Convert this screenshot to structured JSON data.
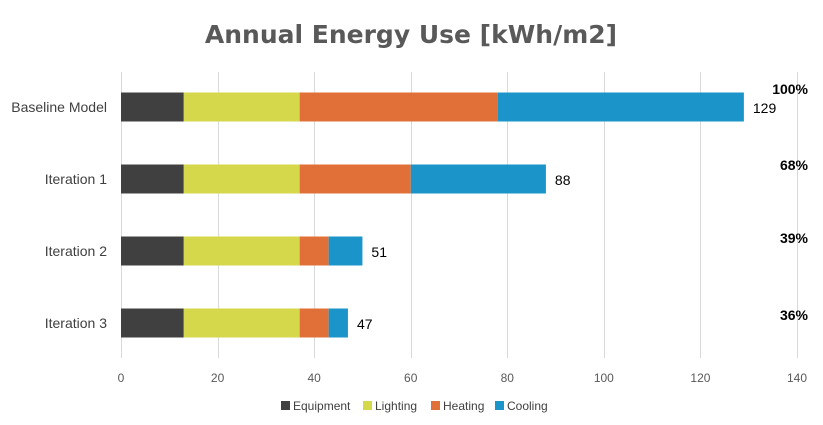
{
  "chart_data": {
    "type": "bar",
    "orientation": "horizontal",
    "stacked": true,
    "title": "Annual Energy Use [kWh/m2]",
    "xlabel": "",
    "ylabel": "",
    "xlim": [
      0,
      140
    ],
    "xticks": [
      0,
      20,
      40,
      60,
      80,
      100,
      120,
      140
    ],
    "xtick_labels": [
      "0",
      "20",
      "40",
      "60",
      "80",
      "100",
      "120",
      "140"
    ],
    "grid": true,
    "legend_position": "bottom",
    "categories": [
      "Baseline Model",
      "Iteration 1",
      "Iteration 2",
      "Iteration 3"
    ],
    "series": [
      {
        "name": "Equipment",
        "color": "#404040",
        "values": [
          13,
          13,
          13,
          13
        ]
      },
      {
        "name": "Lighting",
        "color": "#d5d84b",
        "values": [
          24,
          24,
          24,
          24
        ]
      },
      {
        "name": "Heating",
        "color": "#e07038",
        "values": [
          41,
          23,
          6,
          6
        ]
      },
      {
        "name": "Cooling",
        "color": "#1b95c9",
        "values": [
          51,
          28,
          7,
          4
        ]
      }
    ],
    "totals": [
      "129",
      "88",
      "51",
      "47"
    ],
    "percentages": [
      "100%",
      "68%",
      "39%",
      "36%"
    ]
  }
}
